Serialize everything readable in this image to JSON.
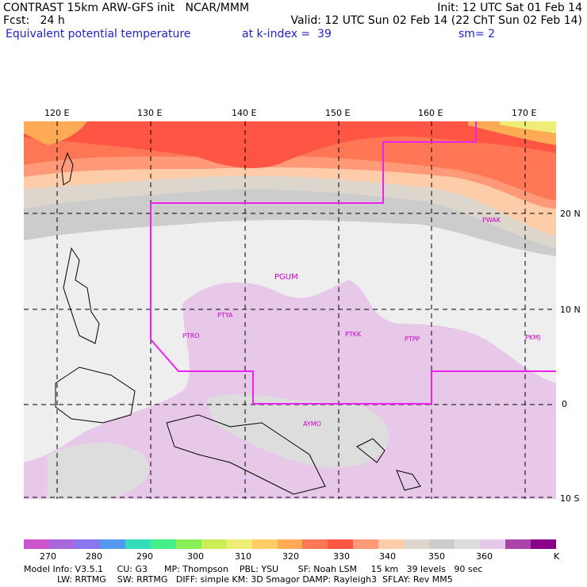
{
  "header": {
    "line1_left": "CONTRAST 15km ARW-GFS init   NCAR/MMM",
    "line1_right": "Init: 12 UTC Sat 01 Feb 14",
    "line2_left": "Fcst:   24 h",
    "line2_right": "Valid: 12 UTC Sun 02 Feb 14 (22 ChT Sun 02 Feb 14)",
    "line3_left": "Equivalent potential temperature",
    "line3_mid": "at k-index =  39",
    "line3_right": "sm= 2"
  },
  "axes": {
    "lon_labels": [
      "120 E",
      "130 E",
      "140 E",
      "150 E",
      "160 E",
      "170 E"
    ],
    "lat_labels": [
      "20 N",
      "10 N",
      "0",
      "10 S"
    ]
  },
  "stations": [
    "PWAK",
    "PGUM",
    "PTYA",
    "PTRO",
    "PTKK",
    "PTPP",
    "PKMJ",
    "AYMO"
  ],
  "colorbar": {
    "colors": [
      "#cc55cc",
      "#aa66dd",
      "#8877ee",
      "#5599ee",
      "#33ddbb",
      "#44ee88",
      "#88ee55",
      "#ccee55",
      "#eeee77",
      "#ffcc66",
      "#ffaa55",
      "#ff7755",
      "#ff5544",
      "#ff9977",
      "#ffccaa",
      "#ddd6cc",
      "#cccccc",
      "#dddddd",
      "#e8c8e8",
      "#aa44aa",
      "#880088"
    ],
    "labels": [
      "270",
      "280",
      "290",
      "300",
      "310",
      "320",
      "330",
      "340",
      "350",
      "360",
      "K"
    ]
  },
  "footer": {
    "line1": "Model Info: V3.5.1     CU: G3      MP: Thompson    PBL: YSU       SF: Noah LSM     15 km   39 levels   90 sec",
    "line2": "            LW: RRTMG    SW: RRTMG   DIFF: simple KM: 3D Smagor DAMP: Rayleigh3  SFLAY: Rev MM5"
  }
}
